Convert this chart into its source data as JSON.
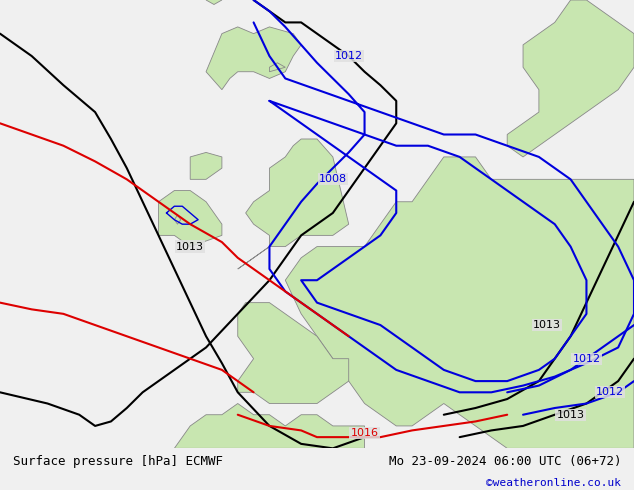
{
  "title_left": "Surface pressure [hPa] ECMWF",
  "title_right": "Mo 23-09-2024 06:00 UTC (06+72)",
  "credit": "©weatheronline.co.uk",
  "bg_ocean": "#e0e0e0",
  "bg_land": "#c8e6b0",
  "border_color": "#888888",
  "footer_bg": "#f0f0f0",
  "line_colors": {
    "black": "#000000",
    "blue": "#0000dd",
    "red": "#dd0000"
  },
  "lw": 1.5,
  "label_fs": 8,
  "footer_fs": 9,
  "credit_fs": 8,
  "credit_color": "#0000cc",
  "map_extent": [
    -20,
    20,
    42,
    62
  ],
  "footer_left": "Surface pressure [hPa] ECMWF",
  "footer_right": "Mo 23-09-2024 06:00 UTC (06+72)"
}
